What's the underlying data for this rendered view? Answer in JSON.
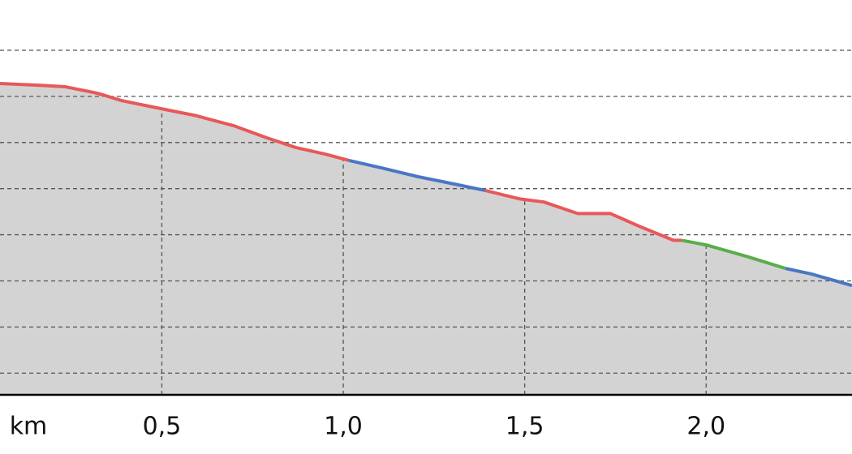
{
  "chart_data": {
    "type": "area-line",
    "x_label": "km",
    "xlim": [
      0.054,
      2.402
    ],
    "xticks": [
      {
        "value": 0.5,
        "label": "0,5"
      },
      {
        "value": 1.0,
        "label": "1,0"
      },
      {
        "value": 1.5,
        "label": "1,5"
      },
      {
        "value": 2.0,
        "label": "2,0"
      }
    ],
    "ylim": [
      -0.47,
      8.09
    ],
    "yticks": [
      0,
      1,
      2,
      3,
      4,
      5,
      6,
      7
    ],
    "grid": true,
    "fill_color": "#d3d3d3",
    "series": [
      {
        "color": "#e8585a",
        "x": [
          0.054,
          0.166,
          0.233,
          0.322,
          0.389,
          0.5,
          0.59,
          0.7,
          0.79,
          0.87,
          0.95,
          1.016
        ],
        "values": [
          6.28,
          6.24,
          6.21,
          6.07,
          5.91,
          5.73,
          5.59,
          5.36,
          5.1,
          4.89,
          4.75,
          4.61
        ]
      },
      {
        "color": "#4a76c4",
        "x": [
          1.016,
          1.105,
          1.206,
          1.306,
          1.391
        ],
        "values": [
          4.61,
          4.45,
          4.26,
          4.1,
          3.96
        ]
      },
      {
        "color": "#e8585a",
        "x": [
          1.391,
          1.485,
          1.553,
          1.646,
          1.736,
          1.82,
          1.91,
          1.933
        ],
        "values": [
          3.96,
          3.78,
          3.71,
          3.46,
          3.46,
          3.17,
          2.88,
          2.88
        ]
      },
      {
        "color": "#5aad4a",
        "x": [
          1.933,
          2.0,
          2.112,
          2.219
        ],
        "values": [
          2.88,
          2.78,
          2.53,
          2.27
        ]
      },
      {
        "color": "#4a76c4",
        "x": [
          2.219,
          2.29,
          2.402
        ],
        "values": [
          2.27,
          2.15,
          1.9
        ]
      }
    ]
  }
}
